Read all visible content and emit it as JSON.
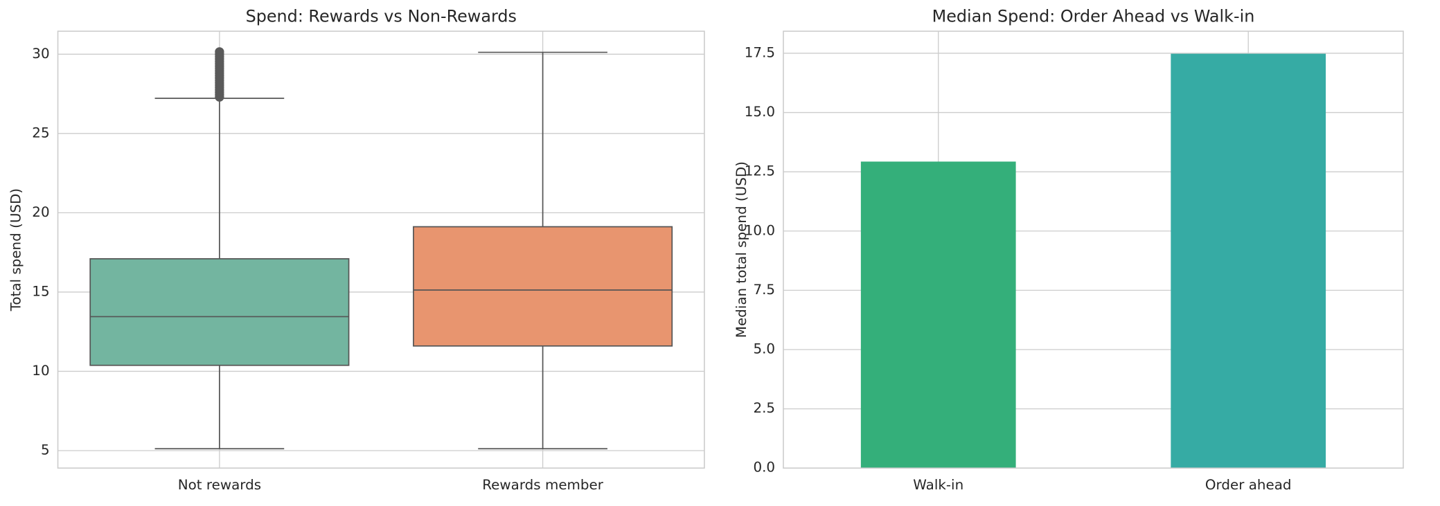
{
  "chart_data": [
    {
      "type": "box",
      "title": "Spend: Rewards vs Non-Rewards",
      "y_label": "Total spend (USD)",
      "categories": [
        "Not rewards",
        "Rewards member"
      ],
      "boxes": [
        {
          "color": "#73b5a0",
          "whisker_low": 5.12,
          "q1": 10.38,
          "median": 13.45,
          "q3": 17.1,
          "whisker_high": 27.22,
          "outliers": [
            27.3,
            27.45,
            27.6,
            27.75,
            27.9,
            28.05,
            28.2,
            28.35,
            28.5,
            28.65,
            28.8,
            28.95,
            29.1,
            29.25,
            29.4,
            29.55,
            29.7,
            29.85,
            30.0,
            30.15
          ]
        },
        {
          "color": "#e8956f",
          "whisker_low": 5.12,
          "q1": 11.6,
          "median": 15.13,
          "q3": 19.12,
          "whisker_high": 30.12,
          "outliers": []
        }
      ],
      "ylim": [
        3.9,
        31.45
      ],
      "yticks": [
        5,
        10,
        15,
        20,
        25,
        30
      ],
      "grid": true
    },
    {
      "type": "bar",
      "title": "Median Spend: Order Ahead vs Walk-in",
      "y_label": "Median total spend (USD)",
      "categories": [
        "Walk-in",
        "Order ahead"
      ],
      "values": [
        12.93,
        17.48
      ],
      "colors": [
        "#34af7a",
        "#36aba4"
      ],
      "ylim": [
        0,
        18.43
      ],
      "yticks": [
        {
          "value": 0,
          "label": "0.0"
        },
        {
          "value": 2.5,
          "label": "2.5"
        },
        {
          "value": 5,
          "label": "5.0"
        },
        {
          "value": 7.5,
          "label": "7.5"
        },
        {
          "value": 10,
          "label": "10.0"
        },
        {
          "value": 12.5,
          "label": "12.5"
        },
        {
          "value": 15,
          "label": "15.0"
        },
        {
          "value": 17.5,
          "label": "17.5"
        }
      ],
      "grid": true
    }
  ]
}
